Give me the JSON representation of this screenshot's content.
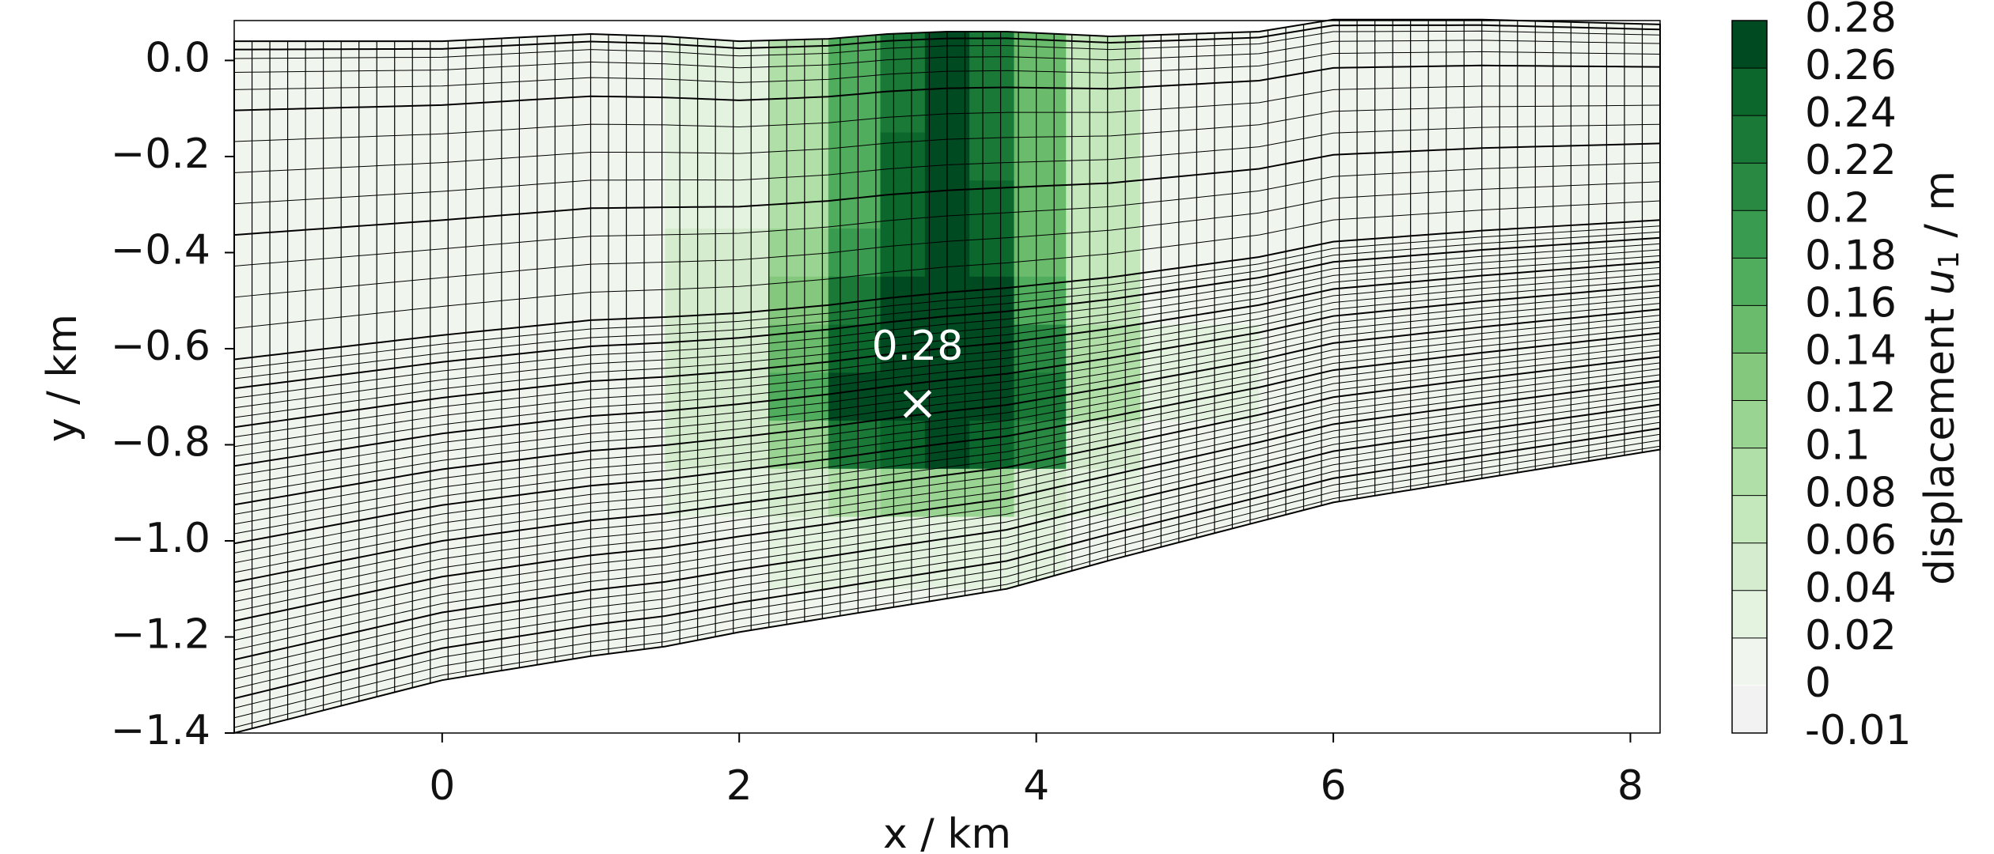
{
  "chart_data": {
    "type": "contour",
    "xlabel": "x / km",
    "ylabel": "y / km",
    "xlim": [
      -1.4,
      8.2
    ],
    "ylim": [
      -1.4,
      0.083
    ],
    "xticks": [
      0,
      2,
      4,
      6,
      8
    ],
    "yticks": [
      {
        "value": 0,
        "label": "0.0"
      },
      {
        "value": -0.2,
        "label": "−0.2"
      },
      {
        "value": -0.4,
        "label": "−0.4"
      },
      {
        "value": -0.6,
        "label": "−0.6"
      },
      {
        "value": -0.8,
        "label": "−0.8"
      },
      {
        "value": -1.0,
        "label": "−1.0"
      },
      {
        "value": -1.2,
        "label": "−1.2"
      },
      {
        "value": -1.4,
        "label": "−1.4"
      }
    ],
    "colorbar": {
      "label": {
        "text": "displacement ",
        "symbol": "u",
        "subscript": "1",
        "unit": " / m"
      },
      "levels": [
        -0.01,
        0,
        0.02,
        0.04,
        0.06,
        0.08,
        0.1,
        0.12,
        0.14,
        0.16,
        0.18,
        0.2,
        0.22,
        0.24,
        0.26,
        0.28
      ],
      "colors": [
        "#f2f2f2",
        "#f0f5ee",
        "#e4f2e0",
        "#d5edce",
        "#c4e7bc",
        "#b1dfa8",
        "#9ad492",
        "#84c87d",
        "#6bbb6c",
        "#51ad5e",
        "#389b50",
        "#298942",
        "#1a7937",
        "#0c672c",
        "#004a21"
      ]
    },
    "domain": {
      "x": [
        -1.4,
        0,
        1,
        1.5,
        2,
        2.6,
        3,
        3.4,
        3.8,
        4.5,
        5.5,
        6,
        7,
        8.2
      ],
      "top": [
        0.04,
        0.04,
        0.055,
        0.05,
        0.04,
        0.045,
        0.055,
        0.06,
        0.06,
        0.05,
        0.06,
        0.085,
        0.085,
        0.075
      ],
      "bottom": [
        -1.4,
        -1.29,
        -1.24,
        -1.22,
        -1.19,
        -1.16,
        -1.14,
        -1.12,
        -1.1,
        -1.04,
        -0.96,
        -0.92,
        -0.87,
        -0.81
      ]
    },
    "field": {
      "x": [
        -1.4,
        0,
        1,
        2,
        2.4,
        2.8,
        3.1,
        3.4,
        3.7,
        4.0,
        4.4,
        5,
        6,
        8.2
      ],
      "y": [
        0.08,
        0,
        -0.1,
        -0.2,
        -0.3,
        -0.4,
        -0.5,
        -0.6,
        -0.7,
        -0.8,
        -0.9,
        -1.0,
        -1.2,
        -1.4
      ],
      "z": [
        [
          0.01,
          0.01,
          0.01,
          0.03,
          0.08,
          0.16,
          0.22,
          0.26,
          0.22,
          0.14,
          0.06,
          0.01,
          0.01,
          0.01
        ],
        [
          0.01,
          0.01,
          0.01,
          0.03,
          0.08,
          0.16,
          0.22,
          0.26,
          0.22,
          0.14,
          0.06,
          0.01,
          0.01,
          0.01
        ],
        [
          0.01,
          0.01,
          0.01,
          0.03,
          0.08,
          0.16,
          0.23,
          0.27,
          0.23,
          0.14,
          0.06,
          0.01,
          0.01,
          0.01
        ],
        [
          0.01,
          0.01,
          0.01,
          0.03,
          0.08,
          0.17,
          0.24,
          0.27,
          0.23,
          0.14,
          0.06,
          0.01,
          0.01,
          0.01
        ],
        [
          0.01,
          0.01,
          0.01,
          0.03,
          0.09,
          0.17,
          0.24,
          0.27,
          0.24,
          0.14,
          0.06,
          0.01,
          0.01,
          0.01
        ],
        [
          0.01,
          0.01,
          0.01,
          0.04,
          0.1,
          0.18,
          0.25,
          0.28,
          0.25,
          0.15,
          0.06,
          0.01,
          0.01,
          0.01
        ],
        [
          0.01,
          0.01,
          0.01,
          0.05,
          0.12,
          0.22,
          0.27,
          0.28,
          0.26,
          0.17,
          0.07,
          0.01,
          0.01,
          0.01
        ],
        [
          0.01,
          0.01,
          0.01,
          0.05,
          0.14,
          0.24,
          0.28,
          0.28,
          0.27,
          0.2,
          0.08,
          0.02,
          0.01,
          0.01
        ],
        [
          0.01,
          0.01,
          0.01,
          0.05,
          0.16,
          0.26,
          0.28,
          0.28,
          0.27,
          0.22,
          0.08,
          0.02,
          0.01,
          0.01
        ],
        [
          0.01,
          0.01,
          0.01,
          0.04,
          0.1,
          0.22,
          0.25,
          0.26,
          0.25,
          0.2,
          0.05,
          0.01,
          0.01,
          0.01
        ],
        [
          0.01,
          0.01,
          0.01,
          0.02,
          0.04,
          0.09,
          0.1,
          0.1,
          0.1,
          0.04,
          0.02,
          0.01,
          0.01,
          0.01
        ],
        [
          0.01,
          0.01,
          0.01,
          0.01,
          0.02,
          0.03,
          0.03,
          0.03,
          0.03,
          0.02,
          0.01,
          0.01,
          0.01,
          0.01
        ],
        [
          0.01,
          0.01,
          0.01,
          0.01,
          0.01,
          0.01,
          0.01,
          0.01,
          0.01,
          0.01,
          0.01,
          0.01,
          0.01,
          0.01
        ],
        [
          0.01,
          0.01,
          0.01,
          0.01,
          0.01,
          0.01,
          0.01,
          0.01,
          0.01,
          0.01,
          0.01,
          0.01,
          0.01,
          0.01
        ]
      ]
    },
    "peak": {
      "x": 3.2,
      "y": -0.715,
      "value": 0.28
    }
  }
}
